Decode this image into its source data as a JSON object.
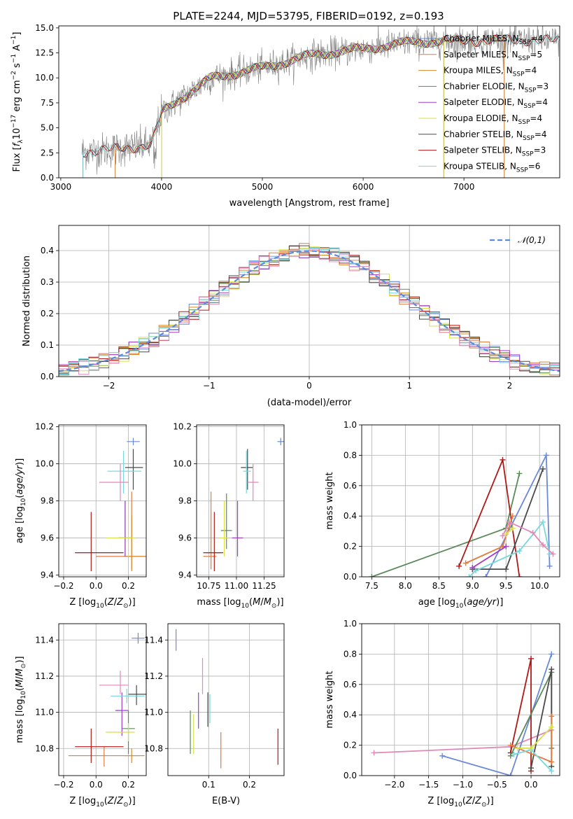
{
  "title": "PLATE=2244, MJD=53795, FIBERID=0192, z=0.193",
  "colors": {
    "Chabrier MILES": "#6a8ad8",
    "Salpeter MILES": "#e07c3e",
    "Kroupa MILES": "#d88a2a",
    "Chabrier ELODIE": "#5a8a5a",
    "Salpeter ELODIE": "#a03cc8",
    "Kroupa ELODIE": "#d8e04a",
    "Chabrier STELIB": "#4a4a4a",
    "Salpeter STELIB": "#b01818",
    "Kroupa STELIB": "#78d8dc",
    "data": "#808080",
    "pink": "#e088b8",
    "normal": "#5b8bd9"
  },
  "chart_data": [
    {
      "type": "line",
      "panel": "spectrum",
      "title": "PLATE=2244, MJD=53795, FIBERID=0192, z=0.193",
      "xlabel": "wavelength [Angstrom, rest frame]",
      "ylabel": "Flux [f_λ 10^-17 erg cm^-2 s^-1 A^-1]",
      "xlim": [
        2980,
        7950
      ],
      "ylim": [
        0,
        15.2
      ],
      "xticks": [
        3000,
        4000,
        5000,
        6000,
        7000
      ],
      "yticks": [
        0.0,
        2.5,
        5.0,
        7.5,
        10.0,
        12.5,
        15.0
      ],
      "data_range": [
        3210,
        7950
      ],
      "continuum": [
        [
          3210,
          2.6
        ],
        [
          3500,
          2.8
        ],
        [
          3900,
          3.3
        ],
        [
          4000,
          6.5
        ],
        [
          4200,
          8.0
        ],
        [
          4500,
          10.0
        ],
        [
          5000,
          11.0
        ],
        [
          5500,
          12.3
        ],
        [
          6000,
          12.9
        ],
        [
          6500,
          13.6
        ],
        [
          7000,
          13.7
        ],
        [
          7500,
          13.8
        ],
        [
          7950,
          13.7
        ]
      ],
      "legend": [
        "Chabrier MILES, N_SSP=4",
        "Salpeter MILES, N_SSP=5",
        "Kroupa MILES, N_SSP=4",
        "Chabrier ELODIE, N_SSP=3",
        "Salpeter ELODIE, N_SSP=4",
        "Kroupa ELODIE, N_SSP=4",
        "Chabrier STELIB, N_SSP=4",
        "Salpeter STELIB, N_SSP=3",
        "Kroupa STELIB, N_SSP=6"
      ],
      "legend_location": "upper-right"
    },
    {
      "type": "step",
      "panel": "residuals",
      "xlabel": "(data-model)/error",
      "ylabel": "Normed distribution",
      "xlim": [
        -2.5,
        2.5
      ],
      "ylim": [
        0,
        0.48
      ],
      "xticks": [
        -2,
        -1,
        0,
        1,
        2
      ],
      "yticks": [
        0.0,
        0.1,
        0.2,
        0.3,
        0.4
      ],
      "legend": [
        "𝒩(0,1)"
      ],
      "legend_location": "upper-right"
    },
    {
      "type": "errorbar",
      "panel": "age-vs-Z",
      "xlabel": "Z [log10(Z/Z⊙)]",
      "ylabel": "age  [log10(age/yr)]",
      "xlim": [
        -0.23,
        0.31
      ],
      "ylim": [
        9.39,
        10.21
      ],
      "xticks": [
        -0.2,
        0.0,
        0.2
      ],
      "yticks": [
        9.4,
        9.6,
        9.8,
        10.0,
        10.2
      ],
      "points": [
        {
          "model": "Chabrier MILES",
          "x": 0.23,
          "y": 10.12
        },
        {
          "model": "Salpeter MILES",
          "x": 0.22,
          "y": 9.5
        },
        {
          "model": "Kroupa MILES",
          "x": 0.22,
          "y": 9.5
        },
        {
          "model": "Chabrier ELODIE",
          "x": 0.18,
          "y": 9.6
        },
        {
          "model": "Salpeter ELODIE",
          "x": 0.18,
          "y": 9.6
        },
        {
          "model": "Kroupa ELODIE",
          "x": 0.2,
          "y": 9.6
        },
        {
          "model": "Chabrier STELIB",
          "x": 0.23,
          "y": 9.98
        },
        {
          "model": "Salpeter STELIB",
          "x": -0.03,
          "y": 9.52
        },
        {
          "model": "Kroupa STELIB",
          "x": 0.17,
          "y": 9.96
        },
        {
          "model": "pink",
          "x": 0.15,
          "y": 9.9
        }
      ]
    },
    {
      "type": "errorbar",
      "panel": "age-vs-mass",
      "xlabel": "mass [log10(M/M⊙)]",
      "xlim": [
        10.64,
        11.43
      ],
      "ylim": [
        9.39,
        10.21
      ],
      "xticks": [
        10.75,
        11.0,
        11.25
      ],
      "yticks": [
        9.4,
        9.6,
        9.8,
        10.0,
        10.2
      ],
      "points": [
        {
          "model": "Chabrier MILES",
          "x": 11.4,
          "y": 10.12
        },
        {
          "model": "Salpeter MILES",
          "x": 10.77,
          "y": 9.5
        },
        {
          "model": "Kroupa MILES",
          "x": 10.77,
          "y": 9.52
        },
        {
          "model": "Chabrier ELODIE",
          "x": 10.91,
          "y": 9.64
        },
        {
          "model": "Salpeter ELODIE",
          "x": 11.01,
          "y": 9.6
        },
        {
          "model": "Kroupa ELODIE",
          "x": 10.89,
          "y": 9.6
        },
        {
          "model": "Chabrier STELIB",
          "x": 11.1,
          "y": 9.98
        },
        {
          "model": "Salpeter STELIB",
          "x": 10.8,
          "y": 9.52
        },
        {
          "model": "Kroupa STELIB",
          "x": 11.09,
          "y": 9.96
        },
        {
          "model": "pink",
          "x": 11.15,
          "y": 9.9
        }
      ]
    },
    {
      "type": "line",
      "panel": "weight-vs-age",
      "xlabel": "age  [log10(age/yr)]",
      "ylabel": "mass weight",
      "xlim": [
        7.35,
        10.3
      ],
      "ylim": [
        0,
        1.0
      ],
      "xticks": [
        7.5,
        8.0,
        8.5,
        9.0,
        9.5,
        10.0
      ],
      "yticks": [
        0.0,
        0.2,
        0.4,
        0.6,
        0.8,
        1.0
      ],
      "series": [
        {
          "model": "Chabrier ELODIE",
          "x": [
            7.5,
            9.5,
            9.7
          ],
          "y": [
            0.0,
            0.32,
            0.68
          ]
        },
        {
          "model": "Salpeter STELIB",
          "x": [
            8.8,
            9.45,
            9.7
          ],
          "y": [
            0.07,
            0.77,
            0.0
          ]
        },
        {
          "model": "Chabrier MILES",
          "x": [
            9.2,
            10.1,
            10.15
          ],
          "y": [
            0.0,
            0.8,
            0.07
          ]
        },
        {
          "model": "Chabrier STELIB",
          "x": [
            9.0,
            9.5,
            10.05
          ],
          "y": [
            0.05,
            0.05,
            0.71
          ]
        },
        {
          "model": "Salpeter MILES",
          "x": [
            8.9,
            9.45,
            9.6
          ],
          "y": [
            0.09,
            0.2,
            0.4
          ]
        },
        {
          "model": "Kroupa STELIB",
          "x": [
            8.95,
            9.05,
            9.7,
            10.05,
            10.15
          ],
          "y": [
            0.0,
            0.04,
            0.17,
            0.36,
            0.15
          ]
        },
        {
          "model": "pink",
          "x": [
            9.45,
            9.55,
            9.9,
            10.05,
            10.2
          ],
          "y": [
            0.27,
            0.36,
            0.29,
            0.21,
            0.15
          ]
        },
        {
          "model": "Salpeter ELODIE",
          "x": [
            9.0,
            9.5
          ],
          "y": [
            0.06,
            0.2
          ]
        },
        {
          "model": "Kroupa ELODIE",
          "x": [
            9.5,
            9.6
          ],
          "y": [
            0.28,
            0.32
          ]
        }
      ]
    },
    {
      "type": "errorbar",
      "panel": "mass-vs-Z",
      "xlabel": "Z [log10(Z/Z⊙)]",
      "ylabel": "mass [log10(M/M⊙)]",
      "xlim": [
        -0.23,
        0.31
      ],
      "ylim": [
        10.65,
        11.49
      ],
      "xticks": [
        -0.2,
        0.0,
        0.2
      ],
      "yticks": [
        10.8,
        11.0,
        11.2,
        11.4
      ],
      "points": [
        {
          "model": "Chabrier MILES",
          "x": 0.26,
          "y": 11.41
        },
        {
          "model": "Salpeter MILES",
          "x": 0.05,
          "y": 10.76
        },
        {
          "model": "Kroupa MILES",
          "x": 0.22,
          "y": 10.76
        },
        {
          "model": "Chabrier ELODIE",
          "x": 0.2,
          "y": 10.91
        },
        {
          "model": "Salpeter ELODIE",
          "x": 0.16,
          "y": 11.01
        },
        {
          "model": "Kroupa ELODIE",
          "x": 0.2,
          "y": 10.89
        },
        {
          "model": "Chabrier STELIB",
          "x": 0.25,
          "y": 11.1
        },
        {
          "model": "Salpeter STELIB",
          "x": -0.03,
          "y": 10.81
        },
        {
          "model": "Kroupa STELIB",
          "x": 0.19,
          "y": 11.09
        },
        {
          "model": "pink",
          "x": 0.15,
          "y": 11.15
        }
      ]
    },
    {
      "type": "errorbar",
      "panel": "mass-vs-EBV",
      "xlabel": "E(B-V)",
      "xlim": [
        0.0,
        0.285
      ],
      "ylim": [
        10.65,
        11.49
      ],
      "xticks": [
        0.1,
        0.2
      ],
      "yticks": [
        10.8,
        11.0,
        11.2,
        11.4
      ],
      "points": [
        {
          "model": "Chabrier MILES",
          "x": 0.02,
          "y": 11.4
        },
        {
          "model": "Salpeter MILES",
          "x": 0.13,
          "y": 10.79
        },
        {
          "model": "Kroupa ELODIE",
          "x": 0.063,
          "y": 10.89
        },
        {
          "model": "Chabrier ELODIE",
          "x": 0.055,
          "y": 10.89
        },
        {
          "model": "Salpeter ELODIE",
          "x": 0.075,
          "y": 11.01
        },
        {
          "model": "Chabrier STELIB",
          "x": 0.098,
          "y": 11.02
        },
        {
          "model": "Kroupa STELIB",
          "x": 0.103,
          "y": 11.02
        },
        {
          "model": "Salpeter STELIB",
          "x": 0.27,
          "y": 10.81
        },
        {
          "model": "pink",
          "x": 0.085,
          "y": 11.2
        }
      ]
    },
    {
      "type": "line",
      "panel": "weight-vs-Z",
      "xlabel": "Z [log10(Z/Z⊙)]",
      "ylabel": "mass weight",
      "xlim": [
        -2.48,
        0.42
      ],
      "ylim": [
        0,
        1.0
      ],
      "xticks": [
        -2.0,
        -1.5,
        -1.0,
        -0.5,
        0.0
      ],
      "yticks": [
        0.0,
        0.2,
        0.4,
        0.6,
        0.8,
        1.0
      ],
      "series": [
        {
          "model": "pink",
          "x": [
            -2.3,
            -0.3,
            0.3
          ],
          "y": [
            0.15,
            0.19,
            0.3
          ]
        },
        {
          "model": "Chabrier MILES",
          "x": [
            -1.3,
            -0.3,
            0.3
          ],
          "y": [
            0.13,
            0.0,
            0.8
          ]
        },
        {
          "model": "Salpeter STELIB",
          "x": [
            -0.3,
            0.0,
            0.0
          ],
          "y": [
            0.15,
            0.77,
            0.03
          ]
        },
        {
          "model": "Chabrier ELODIE",
          "x": [
            -0.3,
            0.3,
            0.3
          ],
          "y": [
            0.13,
            0.68,
            0.18
          ]
        },
        {
          "model": "Chabrier STELIB",
          "x": [
            0.0,
            0.3,
            0.3
          ],
          "y": [
            0.05,
            0.7,
            0.06
          ]
        },
        {
          "model": "Salpeter MILES",
          "x": [
            -0.3,
            0.3,
            0.3
          ],
          "y": [
            0.2,
            0.09,
            0.39
          ]
        },
        {
          "model": "Kroupa STELIB",
          "x": [
            -0.25,
            0.0,
            0.3
          ],
          "y": [
            0.14,
            0.17,
            0.03
          ]
        },
        {
          "model": "Kroupa ELODIE",
          "x": [
            -0.2,
            0.0,
            0.3
          ],
          "y": [
            0.18,
            0.18,
            0.32
          ]
        }
      ]
    }
  ]
}
